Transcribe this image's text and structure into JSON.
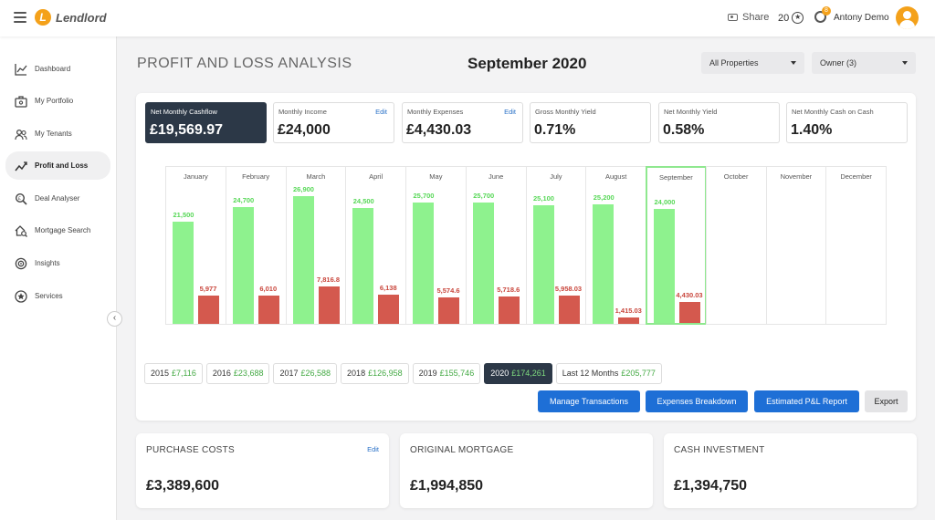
{
  "app": {
    "name": "Lendlord"
  },
  "topbar": {
    "share_label": "Share",
    "points": "20",
    "notification_count": "8",
    "user_name": "Antony Demo"
  },
  "sidebar": {
    "items": [
      {
        "label": "Dashboard",
        "icon": "chart-line-icon",
        "active": false
      },
      {
        "label": "My Portfolio",
        "icon": "portfolio-icon",
        "active": false
      },
      {
        "label": "My Tenants",
        "icon": "tenants-icon",
        "active": false
      },
      {
        "label": "Profit and Loss",
        "icon": "profit-loss-icon",
        "active": true
      },
      {
        "label": "Deal Analyser",
        "icon": "magnifier-icon",
        "active": false
      },
      {
        "label": "Mortgage Search",
        "icon": "mortgage-search-icon",
        "active": false
      },
      {
        "label": "Insights",
        "icon": "insights-icon",
        "active": false
      },
      {
        "label": "Services",
        "icon": "star-circle-icon",
        "active": false
      }
    ]
  },
  "header": {
    "title": "PROFIT AND LOSS ANALYSIS",
    "period": "September 2020",
    "property_filter": "All Properties",
    "owner_filter": "Owner (3)"
  },
  "stats": [
    {
      "label": "Net Monthly Cashflow",
      "value": "£19,569.97",
      "edit": ""
    },
    {
      "label": "Monthly Income",
      "value": "£24,000",
      "edit": "Edit"
    },
    {
      "label": "Monthly Expenses",
      "value": "£4,430.03",
      "edit": "Edit"
    },
    {
      "label": "Gross Monthly Yield",
      "value": "0.71%",
      "edit": ""
    },
    {
      "label": "Net Monthly Yield",
      "value": "0.58%",
      "edit": ""
    },
    {
      "label": "Net Monthly Cash on Cash",
      "value": "1.40%",
      "edit": ""
    }
  ],
  "chart_data": {
    "type": "bar",
    "categories": [
      "January",
      "February",
      "March",
      "April",
      "May",
      "June",
      "July",
      "August",
      "September",
      "October",
      "November",
      "December"
    ],
    "series": [
      {
        "values": [
          21500,
          24700,
          26900,
          24500,
          25700,
          25700,
          25100,
          25200,
          24000,
          null,
          null,
          null
        ],
        "labels": [
          "21,500",
          "24,700",
          "26,900",
          "24,500",
          "25,700",
          "25,700",
          "25,100",
          "25,200",
          "24,000",
          "",
          "",
          ""
        ],
        "color": "#8ef28e"
      },
      {
        "values": [
          5977,
          6010,
          7816.8,
          6138,
          5574.6,
          5718.6,
          5958.03,
          1415.03,
          4430.03,
          null,
          null,
          null
        ],
        "labels": [
          "5,977",
          "6,010",
          "7,816.8",
          "6,138",
          "5,574.6",
          "5,718.6",
          "5,958.03",
          "1,415.03",
          "4,430.03",
          "",
          "",
          ""
        ],
        "color": "#d4594e"
      }
    ],
    "ylim": [
      0,
      28500
    ],
    "selected_month": "September",
    "grid": false,
    "legend": "none"
  },
  "years": [
    {
      "year": "2015",
      "amount": "£7,116",
      "active": false
    },
    {
      "year": "2016",
      "amount": "£23,688",
      "active": false
    },
    {
      "year": "2017",
      "amount": "£26,588",
      "active": false
    },
    {
      "year": "2018",
      "amount": "£126,958",
      "active": false
    },
    {
      "year": "2019",
      "amount": "£155,746",
      "active": false
    },
    {
      "year": "2020",
      "amount": "£174,261",
      "active": true
    },
    {
      "year": "Last 12 Months",
      "amount": "£205,777",
      "active": false
    }
  ],
  "actions": {
    "manage": "Manage Transactions",
    "breakdown": "Expenses Breakdown",
    "report": "Estimated P&L Report",
    "export": "Export"
  },
  "cards": [
    {
      "title": "PURCHASE COSTS",
      "value": "£3,389,600",
      "edit": "Edit"
    },
    {
      "title": "ORIGINAL MORTGAGE",
      "value": "£1,994,850",
      "edit": ""
    },
    {
      "title": "CASH INVESTMENT",
      "value": "£1,394,750",
      "edit": ""
    }
  ],
  "colors": {
    "accent": "#f4a11a",
    "primary_button": "#1e6fd6",
    "dark_tile": "#2c3847",
    "income_bar": "#8ef28e",
    "expense_bar": "#d4594e"
  }
}
